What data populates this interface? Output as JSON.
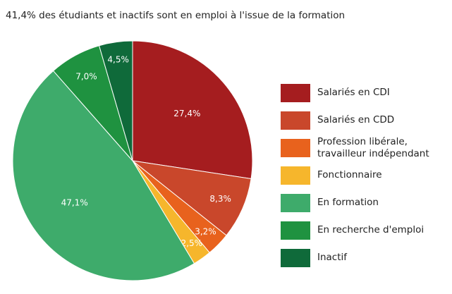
{
  "chart_data": {
    "type": "pie",
    "title": "41,4% des étudiants et inactifs sont en emploi à l'issue de la formation",
    "categories": [
      "Salariés en CDI",
      "Salariés en CDD",
      "Profession libérale, travailleur indépendant",
      "Fonctionnaire",
      "En formation",
      "En recherche d'emploi",
      "Inactif"
    ],
    "values": [
      27.4,
      8.3,
      3.2,
      2.5,
      47.1,
      7.0,
      4.5
    ],
    "value_labels": [
      "27,4%",
      "8,3%",
      "3,2%",
      "2,5%",
      "47,1%",
      "7,0%",
      "4,5%"
    ],
    "colors": [
      "#a51d1f",
      "#c9472b",
      "#e8621d",
      "#f6b62c",
      "#3eab6b",
      "#1f9240",
      "#0f6a3a"
    ]
  }
}
